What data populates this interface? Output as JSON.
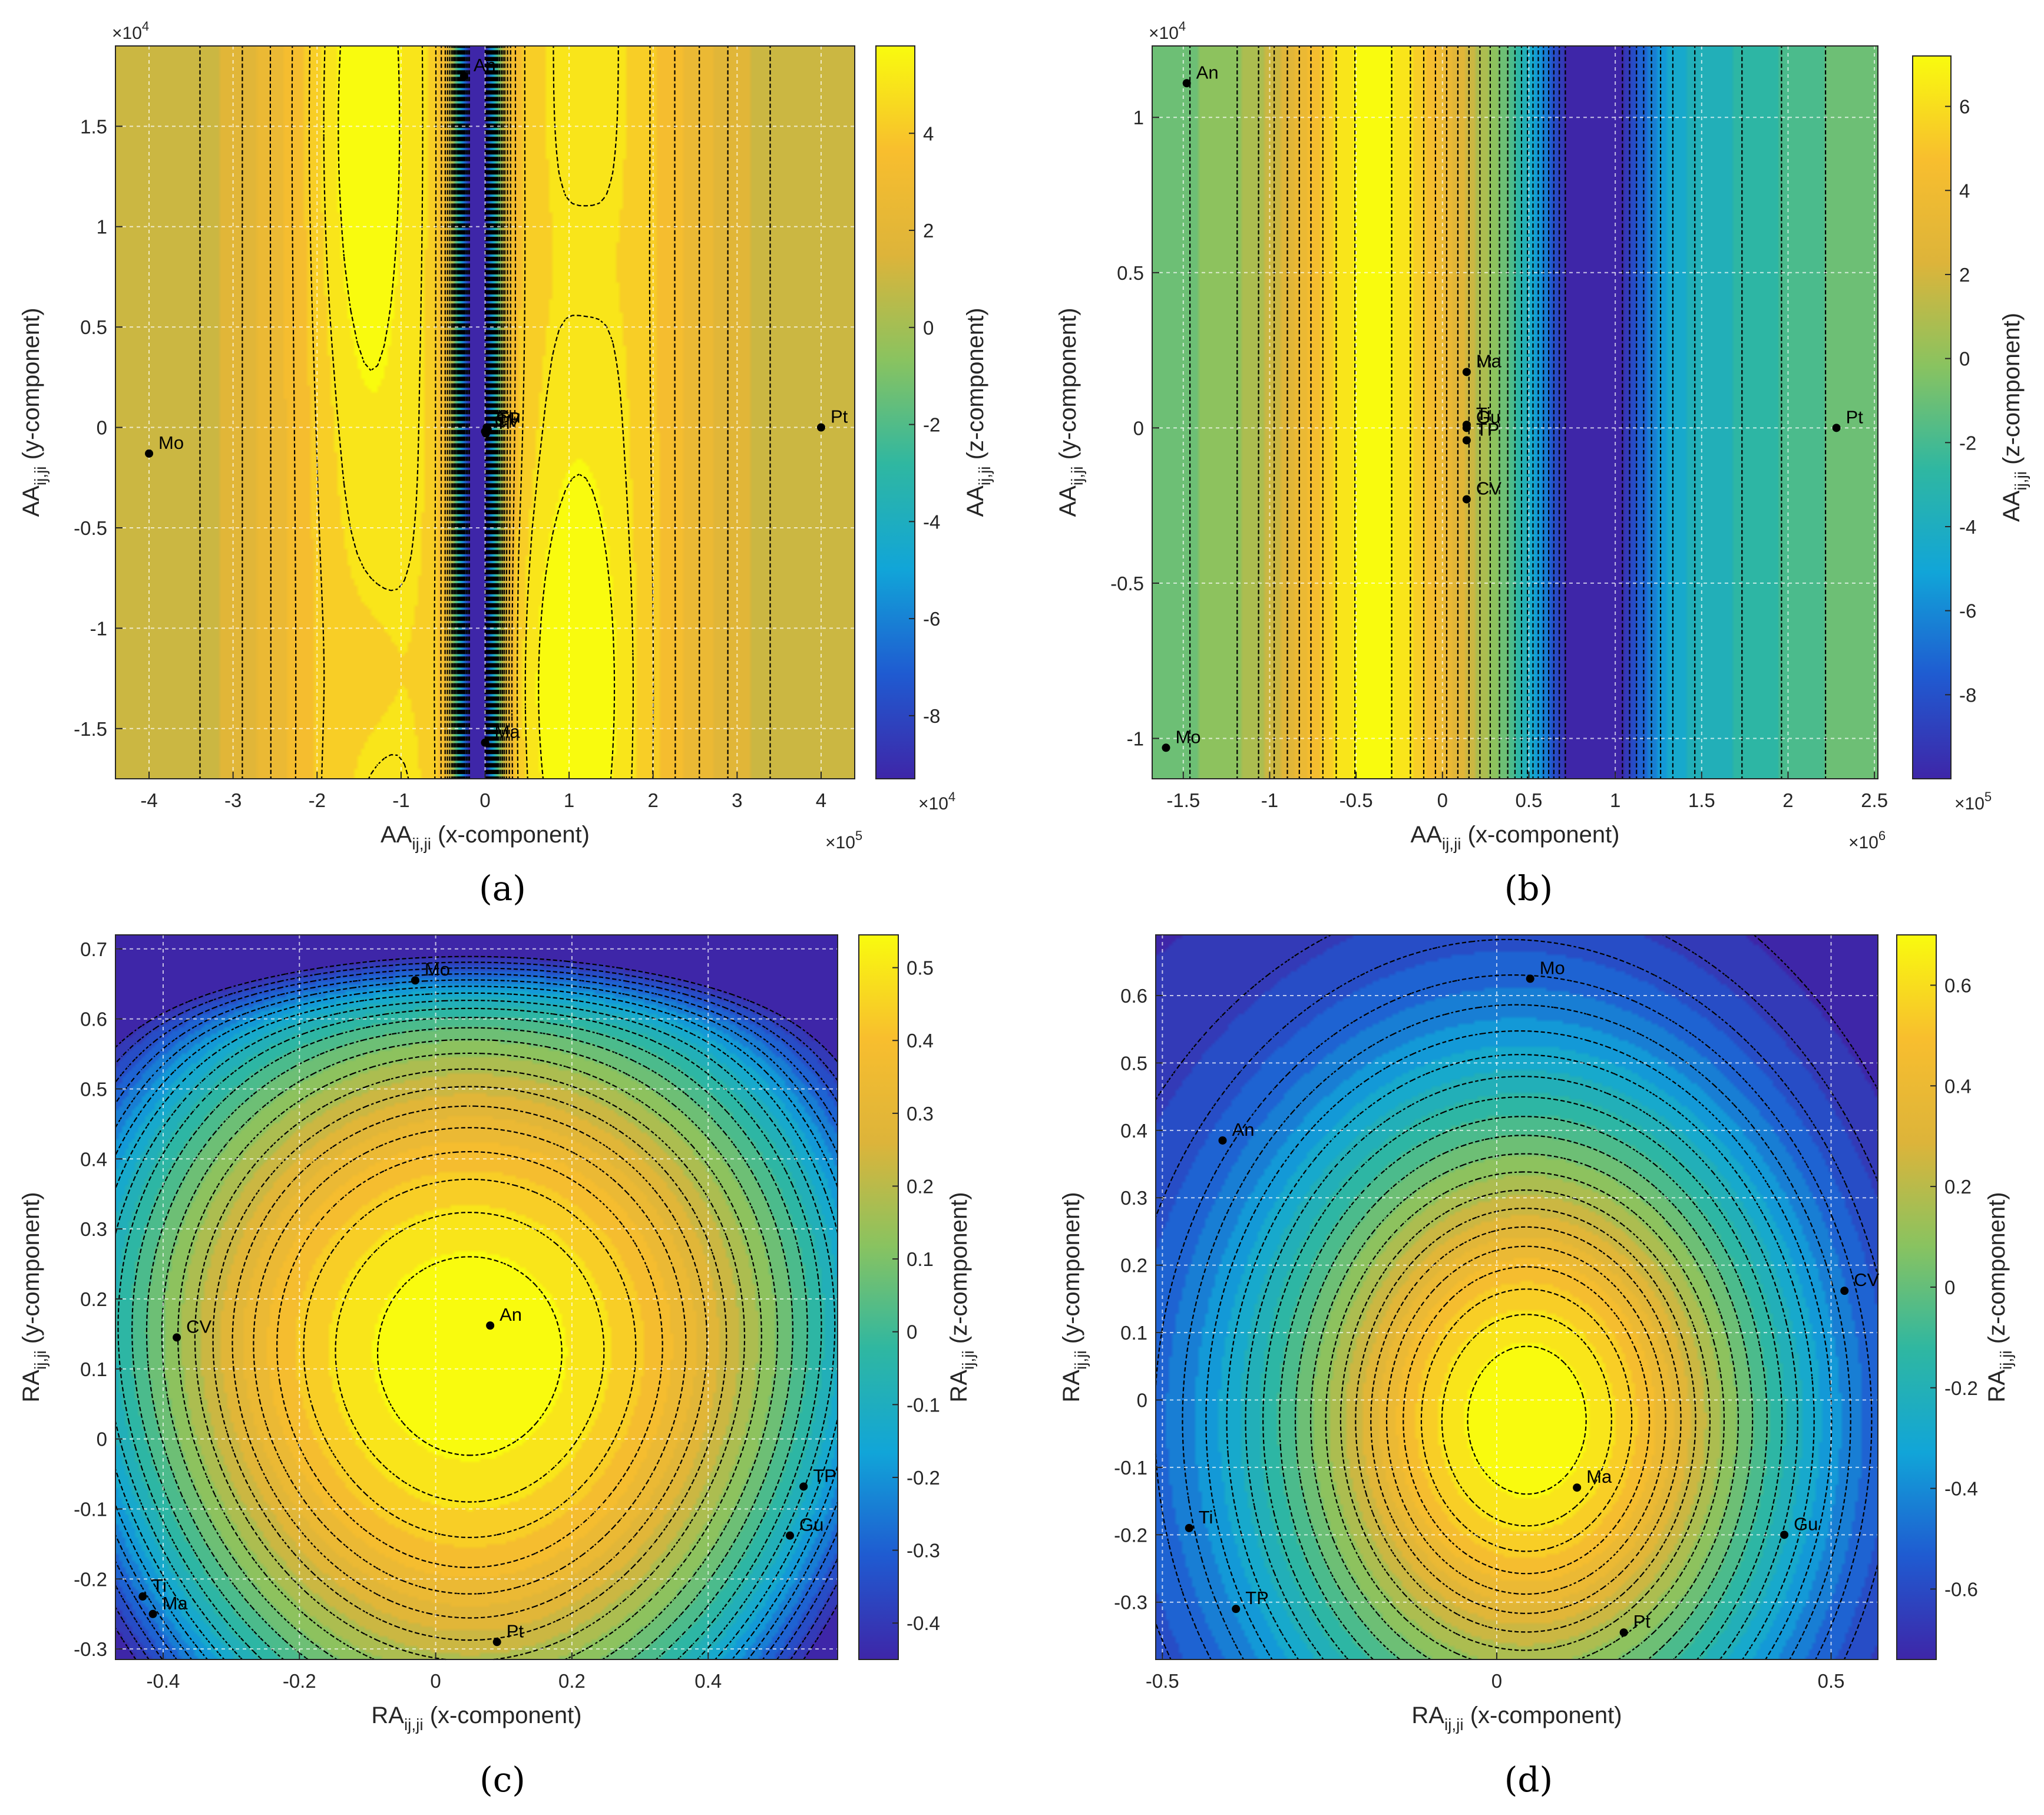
{
  "colors": {
    "stops": [
      "#3e26a8",
      "#1f5bd1",
      "#11a5d8",
      "#2fb7a1",
      "#89c360",
      "#ddb43a",
      "#f8be2e",
      "#f9fb0e"
    ],
    "grid": "#ffffff",
    "contour": "#000000",
    "marker": "#000000"
  },
  "chart_data": [
    {
      "id": "a",
      "type": "heatmap",
      "caption": "(a)",
      "xlabel": "AA",
      "xlabel_sub": "ij,ji",
      "xlabel_rest": " (x-component)",
      "ylabel": "AA",
      "ylabel_sub": "ij,ji",
      "ylabel_rest": " (y-component)",
      "cblabel": "AA",
      "cblabel_sub": "ij,ji",
      "cblabel_rest": " (z-component)",
      "xlim": [
        -4.4,
        4.4
      ],
      "ylim": [
        -1.75,
        1.9
      ],
      "x_ticks": [
        -4,
        -3,
        -2,
        -1,
        0,
        1,
        2,
        3,
        4
      ],
      "x_tick_labels": [
        "-4",
        "-3",
        "-2",
        "-1",
        "0",
        "1",
        "2",
        "3",
        "4"
      ],
      "y_ticks": [
        -1.5,
        -1,
        -0.5,
        0,
        0.5,
        1,
        1.5
      ],
      "y_tick_labels": [
        "-1.5",
        "-1",
        "-0.5",
        "0",
        "0.5",
        "1",
        "1.5"
      ],
      "x_multiplier": "×10",
      "x_multiplier_exp": "5",
      "y_multiplier": "×10",
      "y_multiplier_exp": "4",
      "clim": [
        -9.3,
        5.8
      ],
      "cb_ticks": [
        -8,
        -6,
        -4,
        -2,
        0,
        2,
        4
      ],
      "cb_tick_labels": [
        "-8",
        "-6",
        "-4",
        "-2",
        "0",
        "2",
        "4"
      ],
      "cb_multiplier": "×10",
      "cb_multiplier_exp": "4",
      "field": "a",
      "points": [
        {
          "label": "An",
          "x": -0.25,
          "y": 1.75
        },
        {
          "label": "Mo",
          "x": -4.0,
          "y": -0.13
        },
        {
          "label": "Ma",
          "x": 0.0,
          "y": -1.57
        },
        {
          "label": "Pt",
          "x": 4.0,
          "y": 0.0
        },
        {
          "label": "CV",
          "x": 0.0,
          "y": -0.02
        },
        {
          "label": "Gu",
          "x": 0.02,
          "y": 0.0
        },
        {
          "label": "TP",
          "x": 0.03,
          "y": -0.01
        },
        {
          "label": "Ti",
          "x": 0.01,
          "y": -0.03
        }
      ]
    },
    {
      "id": "b",
      "type": "heatmap",
      "caption": "(b)",
      "xlabel": "AA",
      "xlabel_sub": "ij,ji",
      "xlabel_rest": " (x-component)",
      "ylabel": "AA",
      "ylabel_sub": "ij,ji",
      "ylabel_rest": " (y-component)",
      "cblabel": "AA",
      "cblabel_sub": "ij,ji",
      "cblabel_rest": " (z-component)",
      "xlim": [
        -1.68,
        2.52
      ],
      "ylim": [
        -1.13,
        1.23
      ],
      "x_ticks": [
        -1.5,
        -1,
        -0.5,
        0,
        0.5,
        1,
        1.5,
        2,
        2.5
      ],
      "x_tick_labels": [
        "-1.5",
        "-1",
        "-0.5",
        "0",
        "0.5",
        "1",
        "1.5",
        "2",
        "2.5"
      ],
      "y_ticks": [
        -1,
        -0.5,
        0,
        0.5,
        1
      ],
      "y_tick_labels": [
        "-1",
        "-0.5",
        "0",
        "0.5",
        "1"
      ],
      "x_multiplier": "×10",
      "x_multiplier_exp": "6",
      "y_multiplier": "×10",
      "y_multiplier_exp": "4",
      "clim": [
        -10,
        7.2
      ],
      "cb_ticks": [
        -8,
        -6,
        -4,
        -2,
        0,
        2,
        4,
        6
      ],
      "cb_tick_labels": [
        "-8",
        "-6",
        "-4",
        "-2",
        "0",
        "2",
        "4",
        "6"
      ],
      "cb_multiplier": "×10",
      "cb_multiplier_exp": "5",
      "field": "b",
      "points": [
        {
          "label": "An",
          "x": -1.48,
          "y": 1.11
        },
        {
          "label": "Mo",
          "x": -1.6,
          "y": -1.03
        },
        {
          "label": "Ma",
          "x": 0.14,
          "y": 0.18
        },
        {
          "label": "Pt",
          "x": 2.28,
          "y": 0.0
        },
        {
          "label": "Gu",
          "x": 0.14,
          "y": 0.0
        },
        {
          "label": "Ti",
          "x": 0.14,
          "y": 0.01
        },
        {
          "label": "TP",
          "x": 0.14,
          "y": -0.04
        },
        {
          "label": "CV",
          "x": 0.14,
          "y": -0.23
        }
      ]
    },
    {
      "id": "c",
      "type": "heatmap",
      "caption": "(c)",
      "xlabel": "RA",
      "xlabel_sub": "ij,ji",
      "xlabel_rest": " (x-component)",
      "ylabel": "RA",
      "ylabel_sub": "ij,ji",
      "ylabel_rest": " (y-component)",
      "cblabel": "RA",
      "cblabel_sub": "ij,ji",
      "cblabel_rest": " (z-component)",
      "xlim": [
        -0.47,
        0.59
      ],
      "ylim": [
        -0.315,
        0.72
      ],
      "x_ticks": [
        -0.4,
        -0.2,
        0,
        0.2,
        0.4
      ],
      "x_tick_labels": [
        "-0.4",
        "-0.2",
        "0",
        "0.2",
        "0.4"
      ],
      "y_ticks": [
        -0.3,
        -0.2,
        -0.1,
        0,
        0.1,
        0.2,
        0.3,
        0.4,
        0.5,
        0.6,
        0.7
      ],
      "y_tick_labels": [
        "-0.3",
        "-0.2",
        "-0.1",
        "0",
        "0.1",
        "0.2",
        "0.3",
        "0.4",
        "0.5",
        "0.6",
        "0.7"
      ],
      "clim": [
        -0.45,
        0.545
      ],
      "cb_ticks": [
        -0.4,
        -0.3,
        -0.2,
        -0.1,
        0,
        0.1,
        0.2,
        0.3,
        0.4,
        0.5
      ],
      "cb_tick_labels": [
        "-0.4",
        "-0.3",
        "-0.2",
        "-0.1",
        "0",
        "0.1",
        "0.2",
        "0.3",
        "0.4",
        "0.5"
      ],
      "field": "c",
      "points": [
        {
          "label": "Mo",
          "x": -0.03,
          "y": 0.655
        },
        {
          "label": "An",
          "x": 0.08,
          "y": 0.162
        },
        {
          "label": "CV",
          "x": -0.38,
          "y": 0.145
        },
        {
          "label": "TP",
          "x": 0.54,
          "y": -0.068
        },
        {
          "label": "Gu",
          "x": 0.52,
          "y": -0.138
        },
        {
          "label": "Ti",
          "x": -0.43,
          "y": -0.225
        },
        {
          "label": "Ma",
          "x": -0.415,
          "y": -0.25
        },
        {
          "label": "Pt",
          "x": 0.09,
          "y": -0.29
        }
      ]
    },
    {
      "id": "d",
      "type": "heatmap",
      "caption": "(d)",
      "xlabel": "RA",
      "xlabel_sub": "ij,ji",
      "xlabel_rest": " (x-component)",
      "ylabel": "RA",
      "ylabel_sub": "ij,ji",
      "ylabel_rest": " (y-component)",
      "cblabel": "RA",
      "cblabel_sub": "ij,ji",
      "cblabel_rest": " (z-component)",
      "xlim": [
        -0.51,
        0.57
      ],
      "ylim": [
        -0.385,
        0.69
      ],
      "x_ticks": [
        -0.5,
        0,
        0.5
      ],
      "x_tick_labels": [
        "-0.5",
        "0",
        "0.5"
      ],
      "y_ticks": [
        -0.3,
        -0.2,
        -0.1,
        0,
        0.1,
        0.2,
        0.3,
        0.4,
        0.5,
        0.6
      ],
      "y_tick_labels": [
        "-0.3",
        "-0.2",
        "-0.1",
        "0",
        "0.1",
        "0.2",
        "0.3",
        "0.4",
        "0.5",
        "0.6"
      ],
      "clim": [
        -0.74,
        0.7
      ],
      "cb_ticks": [
        -0.6,
        -0.4,
        -0.2,
        0,
        0.2,
        0.4,
        0.6
      ],
      "cb_tick_labels": [
        "-0.6",
        "-0.4",
        "-0.2",
        "0",
        "0.2",
        "0.4",
        "0.6"
      ],
      "field": "d",
      "points": [
        {
          "label": "Mo",
          "x": 0.05,
          "y": 0.625
        },
        {
          "label": "An",
          "x": -0.41,
          "y": 0.385
        },
        {
          "label": "CV",
          "x": 0.52,
          "y": 0.162
        },
        {
          "label": "Ma",
          "x": 0.12,
          "y": -0.13
        },
        {
          "label": "Ti",
          "x": -0.46,
          "y": -0.19
        },
        {
          "label": "Gu",
          "x": 0.43,
          "y": -0.2
        },
        {
          "label": "TP",
          "x": -0.39,
          "y": -0.31
        },
        {
          "label": "Pt",
          "x": 0.19,
          "y": -0.345
        }
      ]
    }
  ]
}
